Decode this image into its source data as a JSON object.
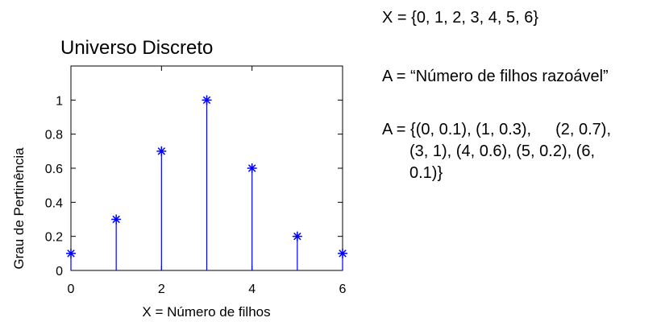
{
  "chart_data": {
    "type": "stem",
    "title": "Universo Discreto",
    "xlabel": "X = Número de filhos",
    "ylabel": "Grau de Pertinência",
    "xlim": [
      0,
      6
    ],
    "ylim": [
      0,
      1.2
    ],
    "x_ticks": [
      "0",
      "2",
      "4",
      "6"
    ],
    "y_ticks": [
      "0",
      "0.2",
      "0.4",
      "0.6",
      "0.8",
      "1"
    ],
    "x": [
      0,
      1,
      2,
      3,
      4,
      5,
      6
    ],
    "values": [
      0.1,
      0.3,
      0.7,
      1,
      0.6,
      0.2,
      0.1
    ],
    "marker": "asterisk",
    "color": "#0000ff",
    "grid": false
  },
  "notes": {
    "universe": "X = {0, 1, 2, 3, 4, 5, 6}",
    "definition": "A = “Número de filhos razoável”",
    "pairs_line1_a": "A = {(0, 0.1), (1, 0.3),",
    "pairs_line1_b": "(2, 0.7),",
    "pairs_line2": "(3, 1), (4, 0.6), (5, 0.2), (6,",
    "pairs_line3": "0.1)}"
  }
}
